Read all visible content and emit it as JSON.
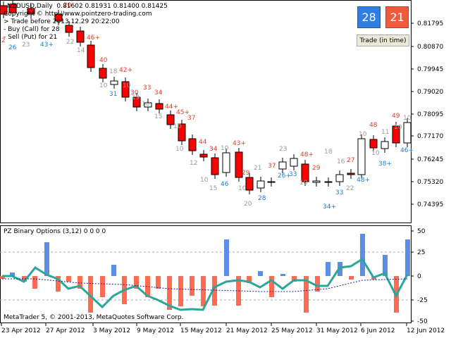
{
  "chart": {
    "symbol_line": "NZDUSD,Daily  0.81602 0.81931 0.81400 0.81425",
    "copyright_line": "Copyright © http://www.pointzero-trading.com",
    "trade_before_line": "> Trade before 2013.12.29 20:22:00",
    "buy_line": "- Buy (Call) for 28",
    "sell_line": "- Sell (Put) for 21",
    "price_ticks": [
      "0.81795",
      "0.80870",
      "0.79945",
      "0.79020",
      "0.78095",
      "0.77170",
      "0.76245",
      "0.75320",
      "0.74395"
    ],
    "date_ticks": [
      "23 Apr 2012",
      "27 Apr 2012",
      "3 May 2012",
      "9 May 2012",
      "15 May 2012",
      "21 May 2012",
      "25 May 2012",
      "31 May 2012",
      "6 Jun 2012",
      "12 Jun 2012"
    ],
    "candle_labels": [
      {
        "text": "2",
        "color": "#e0402a"
      },
      {
        "text": "23",
        "color": "#999999"
      },
      {
        "text": "26",
        "color": "#1a7fd4"
      },
      {
        "text": "43+",
        "color": "#1a7fd4"
      },
      {
        "text": "20",
        "color": "#e0402a"
      },
      {
        "text": "22",
        "color": "#999999"
      },
      {
        "text": "46+",
        "color": "#e0402a"
      },
      {
        "text": "14",
        "color": "#999999"
      },
      {
        "text": "40",
        "color": "#e0402a"
      },
      {
        "text": "10",
        "color": "#999999"
      },
      {
        "text": "18",
        "color": "#999999"
      },
      {
        "text": "31",
        "color": "#1a7fd4"
      },
      {
        "text": "42+",
        "color": "#e0402a"
      },
      {
        "text": "10",
        "color": "#999999"
      },
      {
        "text": "30",
        "color": "#e0402a"
      },
      {
        "text": "19",
        "color": "#999999"
      },
      {
        "text": "33",
        "color": "#e0402a"
      },
      {
        "text": "10",
        "color": "#999999"
      },
      {
        "text": "34",
        "color": "#e0402a"
      },
      {
        "text": "15",
        "color": "#999999"
      },
      {
        "text": "44+",
        "color": "#e0402a"
      },
      {
        "text": "10",
        "color": "#999999"
      },
      {
        "text": "45+",
        "color": "#e0402a"
      },
      {
        "text": "10",
        "color": "#999999"
      },
      {
        "text": "37",
        "color": "#e0402a"
      },
      {
        "text": "12",
        "color": "#999999"
      },
      {
        "text": "44",
        "color": "#e0402a"
      },
      {
        "text": "10",
        "color": "#999999"
      },
      {
        "text": "34",
        "color": "#e0402a"
      },
      {
        "text": "15",
        "color": "#999999"
      },
      {
        "text": "10",
        "color": "#999999"
      },
      {
        "text": "46",
        "color": "#1a7fd4"
      },
      {
        "text": "43+",
        "color": "#e0402a"
      },
      {
        "text": "10",
        "color": "#999999"
      },
      {
        "text": "29",
        "color": "#e0402a"
      },
      {
        "text": "20",
        "color": "#999999"
      },
      {
        "text": "21",
        "color": "#999999"
      },
      {
        "text": "28",
        "color": "#1a7fd4"
      },
      {
        "text": "37",
        "color": "#e0402a"
      },
      {
        "text": "23",
        "color": "#999999"
      },
      {
        "text": "26+",
        "color": "#1a7fd4"
      },
      {
        "text": "33",
        "color": "#1a7fd4"
      },
      {
        "text": "48+",
        "color": "#e0402a"
      },
      {
        "text": "10",
        "color": "#999999"
      },
      {
        "text": "29",
        "color": "#e0402a"
      },
      {
        "text": "18",
        "color": "#999999"
      },
      {
        "text": "34+",
        "color": "#1a7fd4"
      },
      {
        "text": "16",
        "color": "#999999"
      },
      {
        "text": "33",
        "color": "#1a7fd4"
      },
      {
        "text": "27",
        "color": "#e0402a"
      },
      {
        "text": "22",
        "color": "#999999"
      },
      {
        "text": "10",
        "color": "#999999"
      },
      {
        "text": "48+",
        "color": "#1a7fd4"
      },
      {
        "text": "48",
        "color": "#e0402a"
      },
      {
        "text": "10",
        "color": "#999999"
      },
      {
        "text": "11",
        "color": "#999999"
      },
      {
        "text": "38+",
        "color": "#1a7fd4"
      },
      {
        "text": "49",
        "color": "#e0402a"
      },
      {
        "text": "10",
        "color": "#999999"
      },
      {
        "text": "10",
        "color": "#999999"
      },
      {
        "text": "46+",
        "color": "#1a7fd4"
      }
    ]
  },
  "buttons": {
    "buy_count": "28",
    "sell_count": "21",
    "trade_label": "Trade (in time)"
  },
  "indicator": {
    "title": "PZ Binary Options (3,12) 0 0 0 0",
    "ticks": [
      "50",
      "25",
      "0",
      "-25",
      "-50"
    ]
  },
  "footer": {
    "copyright": "MetaTrader 5, © 2001-2013, MetaQuotes Software Corp."
  },
  "colors": {
    "bear": "#ff0000",
    "bull": "#ffffff",
    "hist_pos": "#5b8fe6",
    "hist_neg": "#ff6b50",
    "osc_line": "#2aa79b",
    "signal_line": "#1a1aa0"
  }
}
